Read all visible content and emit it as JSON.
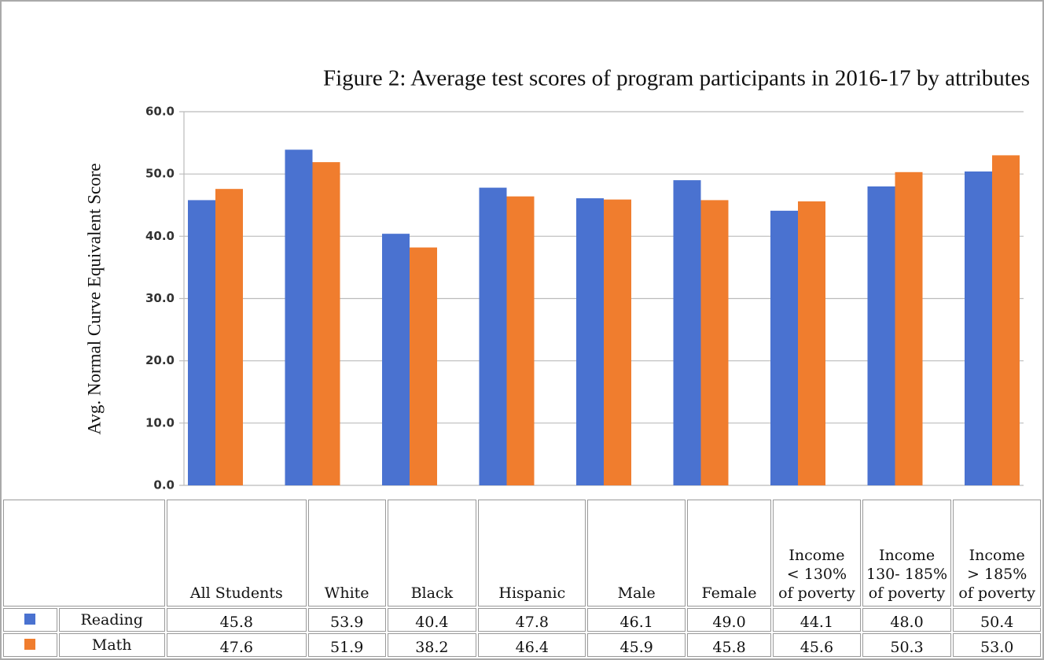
{
  "chart_data": {
    "type": "bar",
    "title": "Figure 2: Average test scores of program participants in 2016-17 by attributes",
    "y_label": "Avg. Normal Curve Equivalent Score",
    "categories": [
      "All Students",
      "White",
      "Black",
      "Hispanic",
      "Male",
      "Female",
      "Income\n< 130%\nof poverty",
      "Income\n130- 185%\nof poverty",
      "Income\n> 185%\nof poverty"
    ],
    "series": [
      {
        "name": "Reading",
        "color": "#4a72d0",
        "values": [
          45.8,
          53.9,
          40.4,
          47.8,
          46.1,
          49.0,
          44.1,
          48.0,
          50.4
        ],
        "value_labels": [
          "45.8",
          "53.9",
          "40.4",
          "47.8",
          "46.1",
          "49.0",
          "44.1",
          "48.0",
          "50.4"
        ]
      },
      {
        "name": "Math",
        "color": "#f07d2e",
        "values": [
          47.6,
          51.9,
          38.2,
          46.4,
          45.9,
          45.8,
          45.6,
          50.3,
          53.0
        ],
        "value_labels": [
          "47.6",
          "51.9",
          "38.2",
          "46.4",
          "45.9",
          "45.8",
          "45.6",
          "50.3",
          "53.0"
        ]
      }
    ],
    "ylim": [
      0,
      60
    ],
    "yticks": [
      {
        "value": 0,
        "label": "0.0"
      },
      {
        "value": 10,
        "label": "10.0"
      },
      {
        "value": 20,
        "label": "20.0"
      },
      {
        "value": 30,
        "label": "30.0"
      },
      {
        "value": 40,
        "label": "40.0"
      },
      {
        "value": 50,
        "label": "50.0"
      },
      {
        "value": 60,
        "label": "60.0"
      }
    ],
    "grid": true
  }
}
